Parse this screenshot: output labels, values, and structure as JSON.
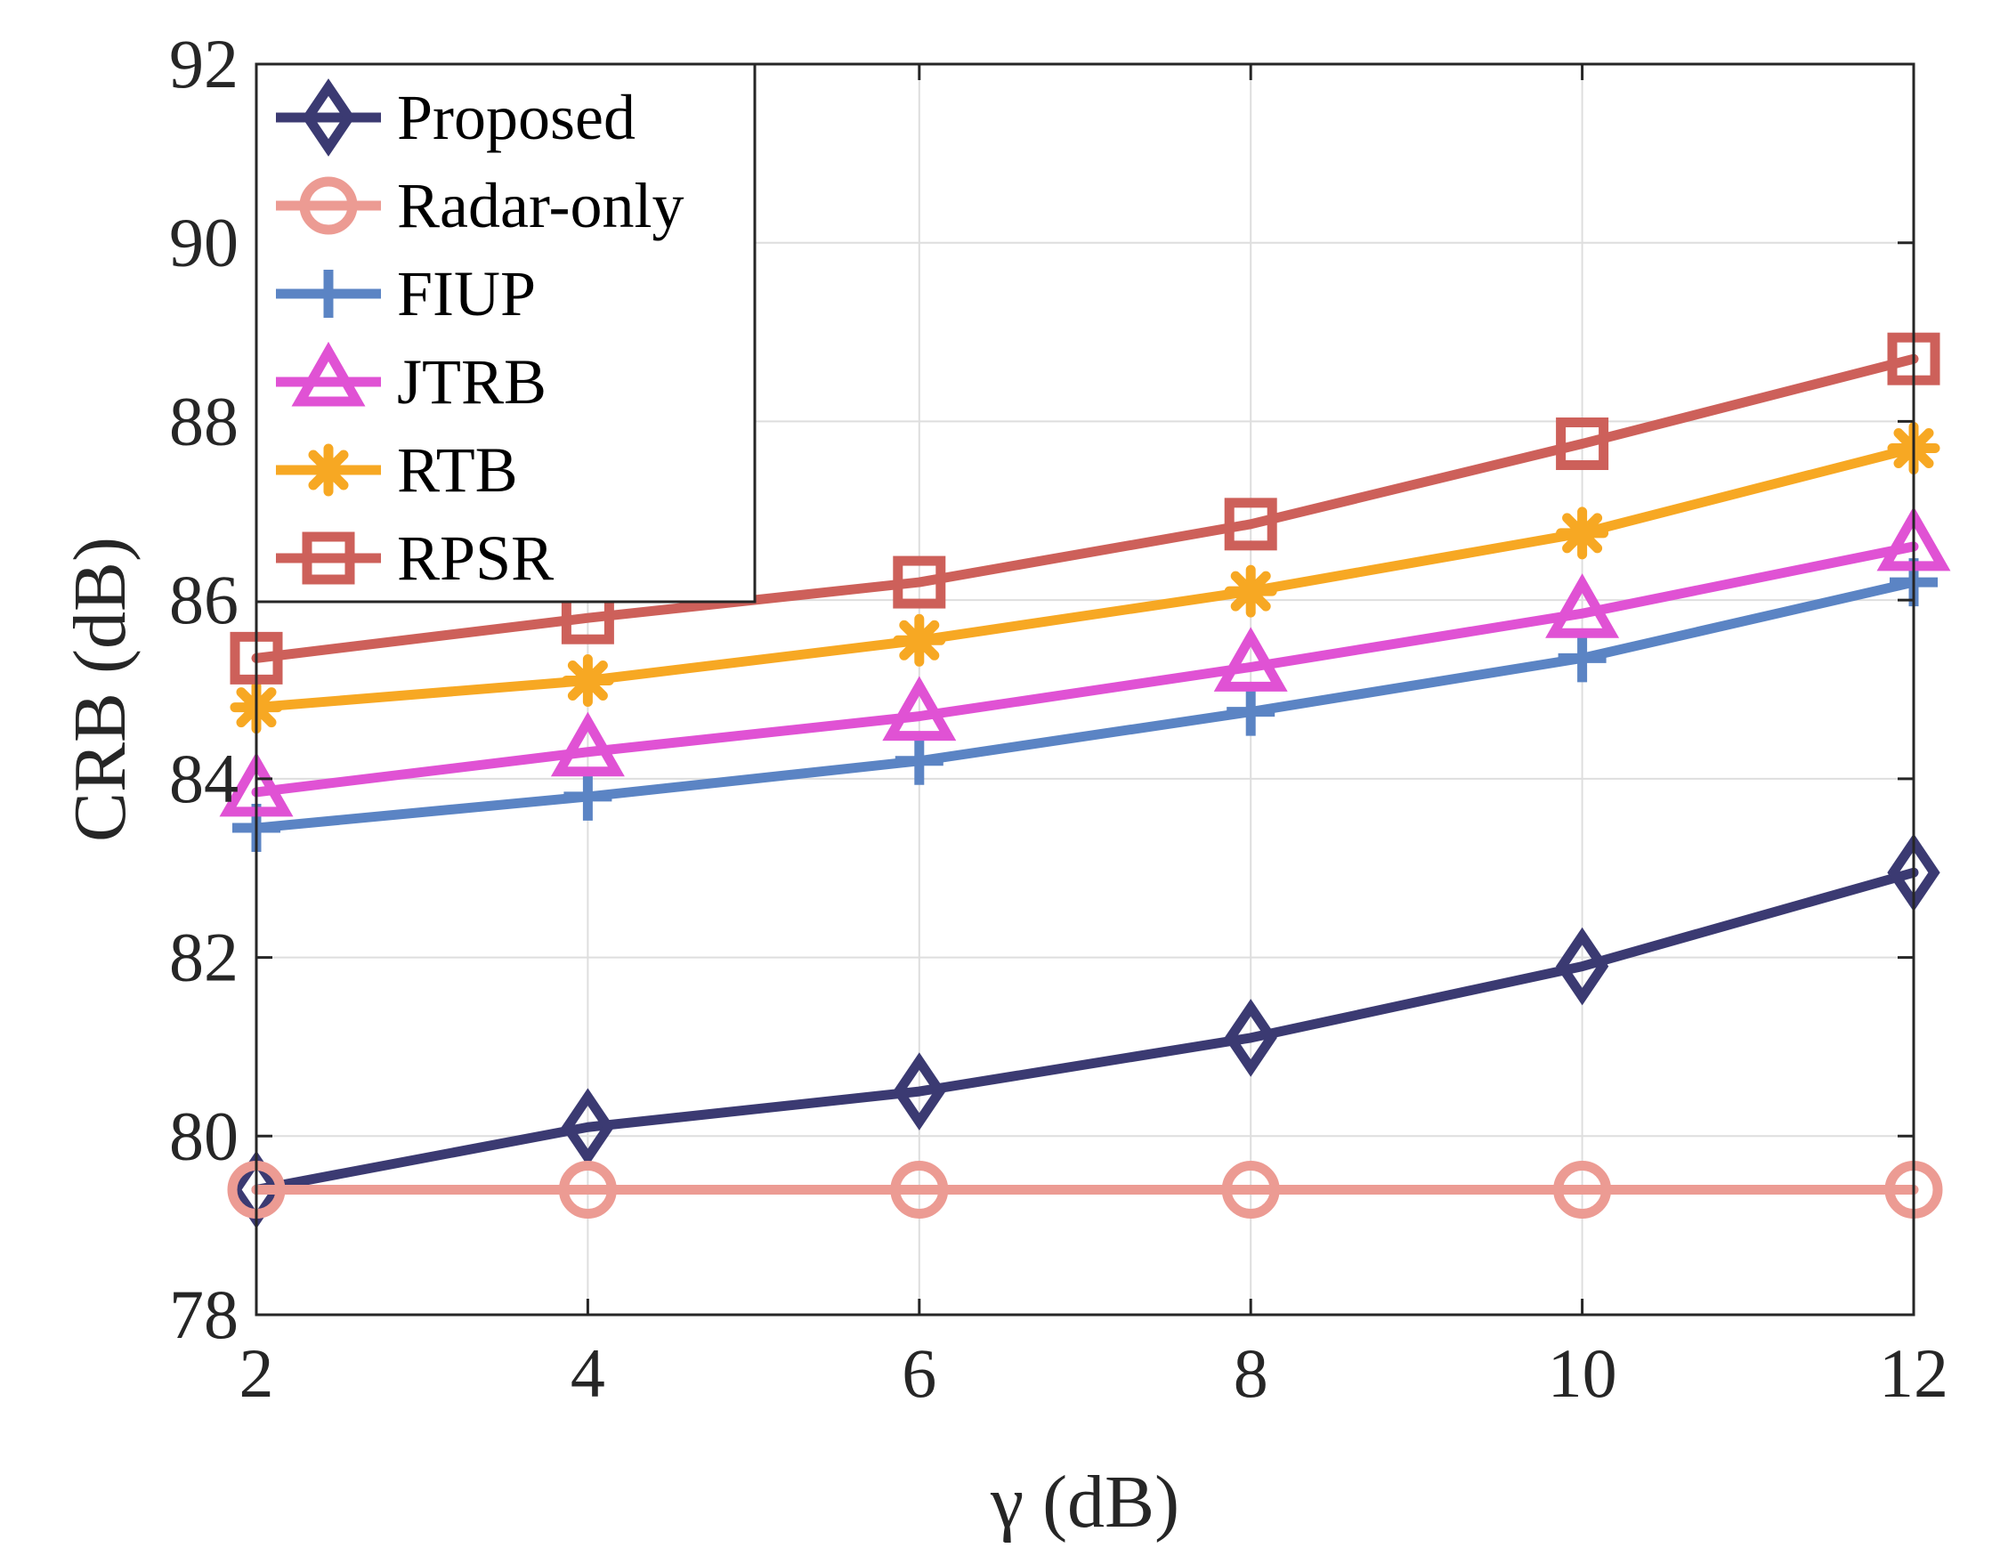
{
  "chart_data": {
    "type": "line",
    "title": "",
    "xlabel": "γ (dB)",
    "ylabel": "CRB (dB)",
    "x": [
      2,
      4,
      6,
      8,
      10,
      12
    ],
    "xlim": [
      2,
      12
    ],
    "ylim": [
      78,
      92
    ],
    "xticks": [
      2,
      4,
      6,
      8,
      10,
      12
    ],
    "yticks": [
      78,
      80,
      82,
      84,
      86,
      88,
      90,
      92
    ],
    "grid": true,
    "legend_position": "top-left",
    "series": [
      {
        "name": "Proposed",
        "marker": "diamond",
        "color": "#3b3a72",
        "values": [
          79.4,
          80.1,
          80.5,
          81.1,
          81.9,
          82.95
        ]
      },
      {
        "name": "Radar-only",
        "marker": "circle",
        "color": "#ec9b93",
        "values": [
          79.4,
          79.4,
          79.4,
          79.4,
          79.4,
          79.4
        ]
      },
      {
        "name": "FIUP",
        "marker": "plus",
        "color": "#5b84c4",
        "values": [
          83.45,
          83.8,
          84.2,
          84.75,
          85.35,
          86.2
        ]
      },
      {
        "name": "JTRB",
        "marker": "triangle",
        "color": "#e052d4",
        "values": [
          83.85,
          84.3,
          84.7,
          85.25,
          85.85,
          86.6
        ]
      },
      {
        "name": "RTB",
        "marker": "asterisk",
        "color": "#f7a823",
        "values": [
          84.8,
          85.1,
          85.55,
          86.1,
          86.75,
          87.7
        ]
      },
      {
        "name": "RPSR",
        "marker": "square",
        "color": "#cd605a",
        "values": [
          85.35,
          85.8,
          86.2,
          86.85,
          87.75,
          88.7
        ]
      }
    ]
  }
}
